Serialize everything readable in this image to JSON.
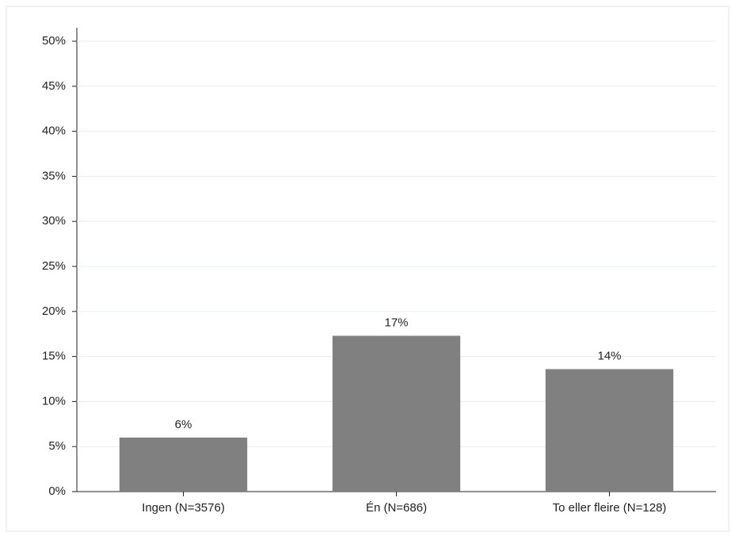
{
  "chart_data": {
    "type": "bar",
    "categories": [
      "Ingen (N=3576)",
      "Én (N=686)",
      "To eller fleire (N=128)"
    ],
    "values": [
      6,
      17.3,
      13.6
    ],
    "value_labels": [
      "6%",
      "17%",
      "14%"
    ],
    "color": "#808080",
    "ylim": [
      0,
      50
    ],
    "yticks": [
      {
        "value": 0,
        "label": "0%"
      },
      {
        "value": 5,
        "label": "5%"
      },
      {
        "value": 10,
        "label": "10%"
      },
      {
        "value": 15,
        "label": "15%"
      },
      {
        "value": 20,
        "label": "20%"
      },
      {
        "value": 25,
        "label": "25%"
      },
      {
        "value": 30,
        "label": "30%"
      },
      {
        "value": 35,
        "label": "35%"
      },
      {
        "value": 40,
        "label": "40%"
      },
      {
        "value": 45,
        "label": "45%"
      },
      {
        "value": 50,
        "label": "50%"
      }
    ],
    "grid": true
  }
}
